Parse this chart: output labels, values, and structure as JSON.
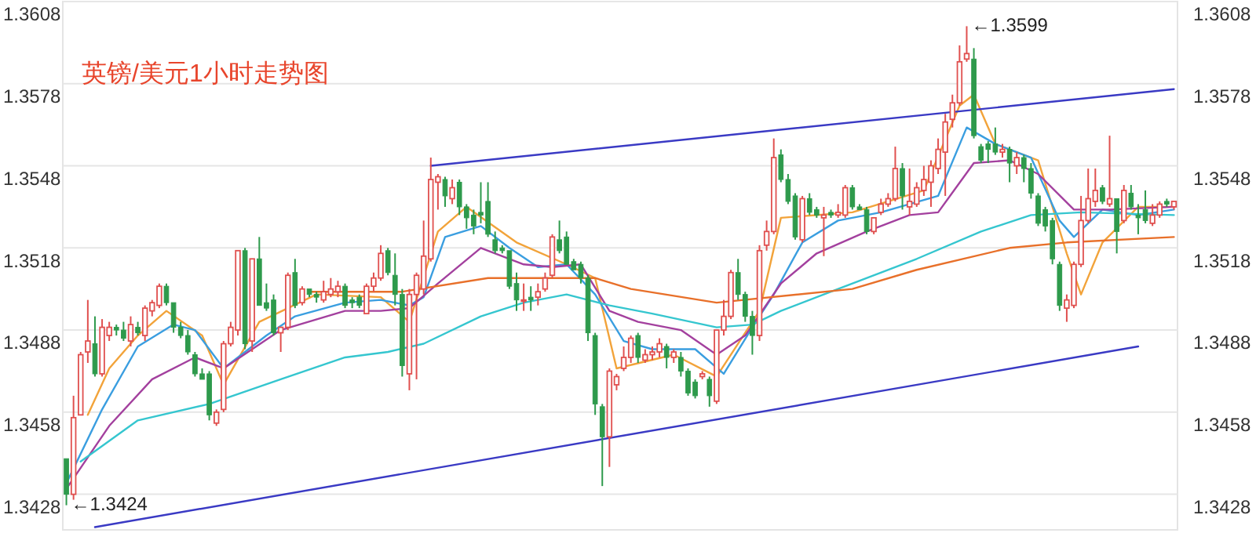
{
  "chart_data": {
    "type": "candlestick",
    "title": "英镑/美元1小时走势图",
    "categories": [
      null,
      null,
      null,
      null,
      null,
      null,
      null,
      null,
      null,
      null,
      null,
      null,
      null,
      null,
      null,
      null,
      null,
      null,
      null,
      null,
      null,
      null,
      null,
      null,
      null,
      null,
      null,
      null,
      null,
      null,
      null,
      null,
      null,
      null,
      null,
      null,
      null,
      null,
      null,
      null,
      null,
      null,
      null,
      null,
      null,
      null,
      null,
      null,
      null,
      null,
      null,
      null,
      null,
      null,
      null,
      null,
      null,
      null,
      null,
      null,
      null,
      null,
      null,
      null,
      null,
      null,
      null,
      null,
      null,
      null,
      null,
      null,
      null,
      null,
      null,
      null,
      null,
      null,
      null,
      null,
      null,
      null,
      null,
      null,
      null,
      null,
      null,
      null,
      null,
      null,
      null,
      null,
      null,
      null,
      null,
      null,
      null,
      null,
      null,
      null,
      null,
      null,
      null,
      null,
      null,
      null,
      null,
      null,
      null,
      null,
      null,
      null,
      null,
      null,
      null,
      null,
      null,
      null,
      null,
      null,
      null,
      null,
      null,
      null,
      null,
      null,
      null,
      null,
      null,
      null,
      null,
      null,
      null,
      null,
      null,
      null,
      null,
      null,
      null,
      null,
      null,
      null,
      null,
      null,
      null,
      null,
      null,
      null,
      null,
      null,
      null,
      null,
      null,
      null,
      null,
      null
    ],
    "ohlc": [
      [
        1.3441,
        1.3441,
        1.3424,
        1.3428
      ],
      [
        1.3428,
        1.3464,
        1.3426,
        1.3456
      ],
      [
        1.3457,
        1.348,
        1.3457,
        1.3479
      ],
      [
        1.348,
        1.3499,
        1.3476,
        1.3484
      ],
      [
        1.3483,
        1.3493,
        1.3471,
        1.3472
      ],
      [
        1.3472,
        1.3492,
        1.3471,
        1.3489
      ],
      [
        1.3486,
        1.3491,
        1.3484,
        1.3489
      ],
      [
        1.3489,
        1.349,
        1.3486,
        1.3488
      ],
      [
        1.3488,
        1.3491,
        1.3484,
        1.3485
      ],
      [
        1.3484,
        1.3493,
        1.3482,
        1.349
      ],
      [
        1.3489,
        1.3491,
        1.3486,
        1.3487
      ],
      [
        1.3486,
        1.3497,
        1.3484,
        1.3496
      ],
      [
        1.3495,
        1.3499,
        1.3493,
        1.3498
      ],
      [
        1.3497,
        1.3505,
        1.3496,
        1.3504
      ],
      [
        1.3504,
        1.3505,
        1.3497,
        1.3498
      ],
      [
        1.3498,
        1.3498,
        1.3487,
        1.3489
      ],
      [
        1.3489,
        1.3491,
        1.3485,
        1.3486
      ],
      [
        1.3486,
        1.3488,
        1.3479,
        1.348
      ],
      [
        1.3479,
        1.348,
        1.3471,
        1.3472
      ],
      [
        1.3472,
        1.3474,
        1.347,
        1.347
      ],
      [
        1.3472,
        1.3473,
        1.3455,
        1.3457
      ],
      [
        1.3454,
        1.3459,
        1.3453,
        1.3458
      ],
      [
        1.3459,
        1.3484,
        1.3458,
        1.3483
      ],
      [
        1.3483,
        1.3491,
        1.3482,
        1.3489
      ],
      [
        1.3488,
        1.3517,
        1.3486,
        1.3517
      ],
      [
        1.3517,
        1.3518,
        1.3481,
        1.3483
      ],
      [
        1.3484,
        1.3514,
        1.348,
        1.3514
      ],
      [
        1.3514,
        1.3522,
        1.3497,
        1.3497
      ],
      [
        1.3498,
        1.3505,
        1.3495,
        1.3496
      ],
      [
        1.3499,
        1.3501,
        1.3486,
        1.3487
      ],
      [
        1.3487,
        1.3489,
        1.348,
        1.3489
      ],
      [
        1.3489,
        1.3509,
        1.3488,
        1.3508
      ],
      [
        1.3509,
        1.3514,
        1.3496,
        1.3497
      ],
      [
        1.3498,
        1.3504,
        1.3497,
        1.3503
      ],
      [
        1.3503,
        1.3503,
        1.35,
        1.3501
      ],
      [
        1.3501,
        1.3502,
        1.3498,
        1.35
      ],
      [
        1.3499,
        1.3506,
        1.3498,
        1.3502
      ],
      [
        1.3501,
        1.3507,
        1.35,
        1.3503
      ],
      [
        1.3502,
        1.3506,
        1.35,
        1.3504
      ],
      [
        1.3504,
        1.3505,
        1.3496,
        1.3497
      ],
      [
        1.3499,
        1.35,
        1.3496,
        1.3498
      ],
      [
        1.35,
        1.3501,
        1.3496,
        1.3497
      ],
      [
        1.3494,
        1.3505,
        1.3494,
        1.3504
      ],
      [
        1.3504,
        1.3509,
        1.3502,
        1.3507
      ],
      [
        1.3507,
        1.3519,
        1.3506,
        1.3516
      ],
      [
        1.3517,
        1.3518,
        1.3508,
        1.3509
      ],
      [
        1.3508,
        1.3516,
        1.3497,
        1.3501
      ],
      [
        1.3501,
        1.3503,
        1.3471,
        1.3475
      ],
      [
        1.3472,
        1.3503,
        1.3466,
        1.3501
      ],
      [
        1.3501,
        1.3509,
        1.347,
        1.3508
      ],
      [
        1.3503,
        1.3528,
        1.3501,
        1.3515
      ],
      [
        1.3514,
        1.3551,
        1.3513,
        1.3543
      ],
      [
        1.3542,
        1.3545,
        1.3532,
        1.3544
      ],
      [
        1.3543,
        1.3544,
        1.3533,
        1.3537
      ],
      [
        1.3536,
        1.3543,
        1.3534,
        1.354
      ],
      [
        1.3542,
        1.3543,
        1.353,
        1.3533
      ],
      [
        1.3533,
        1.3534,
        1.3525,
        1.3529
      ],
      [
        1.353,
        1.3532,
        1.3523,
        1.3526
      ],
      [
        1.3531,
        1.3542,
        1.3527,
        1.353
      ],
      [
        1.3535,
        1.3542,
        1.3522,
        1.3523
      ],
      [
        1.3521,
        1.3524,
        1.3516,
        1.3517
      ],
      [
        1.3518,
        1.3519,
        1.3516,
        1.3517
      ],
      [
        1.3517,
        1.3517,
        1.3503,
        1.3504
      ],
      [
        1.3505,
        1.3509,
        1.3495,
        1.3499
      ],
      [
        1.3499,
        1.3505,
        1.3495,
        1.3499
      ],
      [
        1.35,
        1.3504,
        1.3495,
        1.3499
      ],
      [
        1.35,
        1.3505,
        1.3497,
        1.3502
      ],
      [
        1.3503,
        1.3509,
        1.3502,
        1.3507
      ],
      [
        1.3508,
        1.3523,
        1.3507,
        1.3522
      ],
      [
        1.3521,
        1.3528,
        1.3516,
        1.3517
      ],
      [
        1.3522,
        1.3524,
        1.3512,
        1.3512
      ],
      [
        1.3513,
        1.3514,
        1.351,
        1.351
      ],
      [
        1.3512,
        1.3513,
        1.3505,
        1.3507
      ],
      [
        1.3507,
        1.3508,
        1.3484,
        1.3487
      ],
      [
        1.3486,
        1.3487,
        1.3457,
        1.3461
      ],
      [
        1.346,
        1.3461,
        1.3431,
        1.3449
      ],
      [
        1.3449,
        1.3474,
        1.3438,
        1.3473
      ],
      [
        1.3468,
        1.3472,
        1.3466,
        1.3471
      ],
      [
        1.3474,
        1.3482,
        1.3473,
        1.3478
      ],
      [
        1.3478,
        1.3486,
        1.3476,
        1.3485
      ],
      [
        1.3486,
        1.3487,
        1.3476,
        1.3478
      ],
      [
        1.3477,
        1.3481,
        1.3476,
        1.3479
      ],
      [
        1.3479,
        1.3482,
        1.3477,
        1.348
      ],
      [
        1.348,
        1.3485,
        1.3478,
        1.3483
      ],
      [
        1.3482,
        1.3483,
        1.3474,
        1.3478
      ],
      [
        1.3478,
        1.3481,
        1.3476,
        1.348
      ],
      [
        1.3478,
        1.348,
        1.3471,
        1.3473
      ],
      [
        1.3473,
        1.3474,
        1.3464,
        1.3465
      ],
      [
        1.3469,
        1.347,
        1.3463,
        1.3464
      ],
      [
        1.3471,
        1.3473,
        1.347,
        1.3472
      ],
      [
        1.347,
        1.3471,
        1.346,
        1.3464
      ],
      [
        1.3462,
        1.3488,
        1.3461,
        1.3488
      ],
      [
        1.3488,
        1.3499,
        1.3486,
        1.3493
      ],
      [
        1.3493,
        1.351,
        1.3492,
        1.3509
      ],
      [
        1.3509,
        1.3514,
        1.3499,
        1.3501
      ],
      [
        1.3501,
        1.3502,
        1.3491,
        1.3493
      ],
      [
        1.3493,
        1.3495,
        1.3479,
        1.3486
      ],
      [
        1.3486,
        1.3519,
        1.3484,
        1.3517
      ],
      [
        1.3519,
        1.3528,
        1.3517,
        1.3524
      ],
      [
        1.3524,
        1.3558,
        1.3523,
        1.3551
      ],
      [
        1.3552,
        1.3554,
        1.3542,
        1.3543
      ],
      [
        1.3543,
        1.3545,
        1.3534,
        1.3535
      ],
      [
        1.3537,
        1.3538,
        1.3521,
        1.3522
      ],
      [
        1.3521,
        1.3537,
        1.352,
        1.3536
      ],
      [
        1.3536,
        1.3538,
        1.353,
        1.3531
      ],
      [
        1.3532,
        1.3533,
        1.3529,
        1.353
      ],
      [
        1.3529,
        1.3533,
        1.3515,
        1.353
      ],
      [
        1.3531,
        1.3532,
        1.3529,
        1.353
      ],
      [
        1.353,
        1.3534,
        1.3529,
        1.3531
      ],
      [
        1.353,
        1.3541,
        1.3529,
        1.354
      ],
      [
        1.354,
        1.3541,
        1.3532,
        1.3533
      ],
      [
        1.3533,
        1.3534,
        1.3532,
        1.3532
      ],
      [
        1.3532,
        1.3533,
        1.3523,
        1.3524
      ],
      [
        1.3524,
        1.3529,
        1.3523,
        1.3529
      ],
      [
        1.3531,
        1.3536,
        1.353,
        1.3534
      ],
      [
        1.3534,
        1.3538,
        1.3533,
        1.3536
      ],
      [
        1.3536,
        1.3555,
        1.3535,
        1.3547
      ],
      [
        1.3547,
        1.3549,
        1.3532,
        1.3537
      ],
      [
        1.3533,
        1.3547,
        1.353,
        1.3535
      ],
      [
        1.3534,
        1.3542,
        1.3533,
        1.354
      ],
      [
        1.3539,
        1.3548,
        1.3537,
        1.3543
      ],
      [
        1.3542,
        1.355,
        1.3533,
        1.3548
      ],
      [
        1.3547,
        1.3558,
        1.3545,
        1.3554
      ],
      [
        1.3553,
        1.3567,
        1.3537,
        1.3564
      ],
      [
        1.3565,
        1.3574,
        1.3562,
        1.3571
      ],
      [
        1.3571,
        1.3592,
        1.357,
        1.3586
      ],
      [
        1.3587,
        1.3599,
        1.3586,
        1.3589
      ],
      [
        1.3587,
        1.3591,
        1.3558,
        1.3559
      ],
      [
        1.3555,
        1.3556,
        1.3549,
        1.355
      ],
      [
        1.3556,
        1.3557,
        1.3549,
        1.3554
      ],
      [
        1.3556,
        1.3562,
        1.3552,
        1.3553
      ],
      [
        1.3553,
        1.3556,
        1.3551,
        1.3554
      ],
      [
        1.3554,
        1.3555,
        1.3542,
        1.3549
      ],
      [
        1.3548,
        1.3553,
        1.3545,
        1.3551
      ],
      [
        1.3551,
        1.3552,
        1.3542,
        1.3547
      ],
      [
        1.3547,
        1.3549,
        1.3536,
        1.3538
      ],
      [
        1.3537,
        1.3538,
        1.3526,
        1.3527
      ],
      [
        1.3532,
        1.3533,
        1.3524,
        1.3526
      ],
      [
        1.3528,
        1.3529,
        1.3512,
        1.3514
      ],
      [
        1.3512,
        1.3513,
        1.3495,
        1.3497
      ],
      [
        1.3496,
        1.3501,
        1.3491,
        1.3499
      ],
      [
        1.3497,
        1.3513,
        1.3496,
        1.3512
      ],
      [
        1.3512,
        1.3537,
        1.3511,
        1.3528
      ],
      [
        1.3528,
        1.3547,
        1.3527,
        1.3536
      ],
      [
        1.3535,
        1.3547,
        1.3533,
        1.3539
      ],
      [
        1.354,
        1.3541,
        1.3534,
        1.3535
      ],
      [
        1.3534,
        1.3559,
        1.3533,
        1.3536
      ],
      [
        1.3536,
        1.3536,
        1.3516,
        1.3524
      ],
      [
        1.3528,
        1.3541,
        1.3527,
        1.3539
      ],
      [
        1.3538,
        1.3541,
        1.3532,
        1.3533
      ],
      [
        1.353,
        1.3534,
        1.3523,
        1.3529
      ],
      [
        1.3532,
        1.3539,
        1.3527,
        1.3528
      ],
      [
        1.3527,
        1.3534,
        1.3526,
        1.353
      ],
      [
        1.353,
        1.3535,
        1.3529,
        1.3534
      ],
      [
        1.3535,
        1.3536,
        1.3533,
        1.3534
      ],
      [
        1.3533,
        1.3535,
        1.3532,
        1.3535
      ]
    ],
    "series": [
      {
        "type": "line",
        "color": "#f2a33a",
        "values": [
          null,
          null,
          null,
          1.3457,
          null,
          null,
          1.3474,
          null,
          null,
          null,
          1.3486,
          null,
          null,
          null,
          1.3495,
          null,
          null,
          null,
          null,
          1.3486,
          null,
          null,
          1.3468,
          null,
          null,
          null,
          null,
          1.3491,
          null,
          null,
          null,
          null,
          null,
          null,
          null,
          1.3501,
          null,
          null,
          null,
          null,
          null,
          null,
          null,
          null,
          1.35,
          null,
          null,
          null,
          1.3491,
          null,
          null,
          null,
          1.3524,
          null,
          null,
          null,
          1.3533,
          null,
          null,
          null,
          null,
          null,
          null,
          1.352,
          null,
          null,
          null,
          null,
          null,
          null,
          1.3512,
          null,
          null,
          null,
          1.3507,
          null,
          null,
          1.3474,
          null,
          null,
          null,
          null,
          null,
          null,
          null,
          1.3479,
          null,
          null,
          null,
          null,
          null,
          1.3471,
          null,
          null,
          null,
          null,
          null,
          1.3495,
          null,
          null,
          1.3529,
          null,
          null,
          null,
          null,
          null,
          null,
          null,
          null,
          null,
          1.3531,
          null,
          null,
          null,
          null,
          null,
          null,
          null,
          null,
          null,
          1.3539,
          null,
          null,
          null,
          null,
          1.357,
          null,
          1.3574,
          null,
          null,
          1.3556,
          null,
          null,
          null,
          null,
          null,
          1.355,
          null,
          null,
          null,
          1.3516,
          null,
          1.3501,
          null,
          null,
          1.352,
          null,
          null,
          null,
          null,
          1.3533,
          null,
          null,
          null,
          null,
          1.3533
        ]
      },
      {
        "type": "line",
        "color": "#3a9ee0",
        "values": [
          1.3432,
          null,
          null,
          null,
          null,
          1.3459,
          null,
          null,
          null,
          null,
          1.3482,
          null,
          null,
          null,
          null,
          1.349,
          null,
          null,
          1.3488,
          null,
          null,
          null,
          1.3474,
          null,
          null,
          null,
          null,
          null,
          1.3486,
          null,
          null,
          null,
          1.3493,
          null,
          null,
          null,
          null,
          null,
          null,
          1.3498,
          null,
          null,
          null,
          null,
          1.3499,
          null,
          null,
          null,
          1.3497,
          null,
          1.35,
          null,
          null,
          1.3522,
          null,
          null,
          null,
          null,
          1.3526,
          null,
          null,
          null,
          1.3518,
          null,
          null,
          null,
          1.3511,
          null,
          null,
          null,
          1.3512,
          null,
          null,
          null,
          1.3501,
          null,
          null,
          null,
          1.3484,
          null,
          null,
          null,
          1.3481,
          null,
          null,
          null,
          null,
          null,
          1.3481,
          null,
          null,
          null,
          1.3472,
          null,
          null,
          null,
          1.3489,
          null,
          null,
          1.3501,
          null,
          null,
          null,
          1.352,
          null,
          null,
          null,
          null,
          1.3528,
          null,
          null,
          null,
          null,
          null,
          1.3531,
          null,
          null,
          null,
          1.3534,
          null,
          null,
          null,
          1.3537,
          null,
          null,
          null,
          1.3562,
          null,
          null,
          null,
          1.3556,
          null,
          null,
          null,
          null,
          1.3551,
          null,
          null,
          null,
          1.3528,
          null,
          1.3522,
          null,
          null,
          null,
          1.3532,
          null,
          null,
          null,
          null,
          1.353,
          null,
          null,
          null,
          null,
          1.3532
        ]
      },
      {
        "type": "line",
        "color": "#a3409e",
        "values": [
          1.343,
          null,
          null,
          null,
          null,
          null,
          1.3453,
          null,
          null,
          null,
          null,
          null,
          1.347,
          null,
          null,
          null,
          null,
          null,
          1.3478,
          null,
          null,
          null,
          1.3474,
          null,
          null,
          null,
          null,
          null,
          null,
          null,
          1.3488,
          null,
          null,
          null,
          null,
          null,
          null,
          null,
          null,
          1.3495,
          null,
          null,
          null,
          null,
          1.3495,
          null,
          null,
          null,
          1.3496,
          null,
          null,
          null,
          1.3505,
          null,
          null,
          null,
          null,
          null,
          1.3518,
          null,
          null,
          null,
          null,
          null,
          1.3512,
          null,
          null,
          null,
          1.3511,
          null,
          null,
          null,
          1.3512,
          null,
          null,
          null,
          1.3495,
          null,
          null,
          null,
          1.3491,
          null,
          null,
          null,
          null,
          null,
          1.3488,
          null,
          null,
          null,
          null,
          1.3479,
          null,
          null,
          null,
          1.3486,
          null,
          null,
          null,
          null,
          1.3505,
          null,
          null,
          null,
          null,
          1.3516,
          null,
          null,
          null,
          null,
          null,
          null,
          1.3524,
          null,
          null,
          null,
          null,
          null,
          1.353,
          null,
          null,
          null,
          1.3531,
          null,
          null,
          null,
          null,
          1.3549,
          null,
          null,
          null,
          null,
          1.355,
          null,
          null,
          null,
          1.3545,
          null,
          null,
          null,
          null,
          1.3532,
          null,
          null,
          null,
          null,
          1.3532,
          null,
          null,
          null,
          null,
          null,
          null,
          null,
          null,
          1.3533
        ]
      },
      {
        "type": "line",
        "color": "#35c6cf",
        "values": [
          null,
          null,
          1.344,
          null,
          null,
          null,
          null,
          null,
          null,
          null,
          1.3455,
          null,
          null,
          null,
          null,
          null,
          null,
          null,
          null,
          null,
          1.3461,
          null,
          null,
          null,
          null,
          null,
          null,
          null,
          null,
          null,
          1.347,
          null,
          null,
          null,
          null,
          null,
          null,
          null,
          null,
          1.3478,
          null,
          null,
          null,
          null,
          null,
          1.348,
          null,
          null,
          null,
          null,
          1.3483,
          null,
          null,
          null,
          null,
          null,
          null,
          null,
          1.3493,
          null,
          null,
          null,
          null,
          null,
          1.3498,
          null,
          null,
          null,
          null,
          null,
          1.3501,
          null,
          null,
          null,
          null,
          null,
          1.3497,
          null,
          null,
          null,
          null,
          null,
          1.3494,
          null,
          null,
          null,
          null,
          null,
          null,
          null,
          null,
          1.3489,
          null,
          null,
          null,
          null,
          1.349,
          null,
          null,
          null,
          1.3495,
          null,
          null,
          null,
          null,
          null,
          null,
          1.3502,
          null,
          null,
          null,
          null,
          null,
          null,
          null,
          null,
          null,
          null,
          null,
          1.3514,
          null,
          null,
          null,
          null,
          null,
          null,
          null,
          null,
          1.3524,
          null,
          null,
          null,
          null,
          null,
          null,
          1.353,
          null,
          null,
          null,
          null,
          null,
          null,
          1.3531,
          null,
          null,
          null,
          null,
          null,
          null,
          null,
          null,
          null,
          null,
          null,
          null,
          1.353
        ]
      },
      {
        "type": "line",
        "color": "#e8702a",
        "values": [
          null,
          null,
          null,
          null,
          null,
          null,
          null,
          null,
          null,
          null,
          null,
          null,
          null,
          null,
          null,
          null,
          null,
          null,
          null,
          null,
          null,
          null,
          null,
          null,
          null,
          null,
          null,
          null,
          null,
          null,
          null,
          null,
          null,
          null,
          1.3502,
          null,
          null,
          null,
          null,
          null,
          null,
          null,
          null,
          null,
          null,
          null,
          null,
          1.3502,
          null,
          null,
          null,
          null,
          null,
          null,
          null,
          null,
          null,
          null,
          null,
          1.3507,
          null,
          null,
          null,
          null,
          null,
          null,
          null,
          null,
          null,
          null,
          null,
          null,
          null,
          null,
          1.3507,
          null,
          null,
          null,
          null,
          1.3503,
          null,
          null,
          null,
          null,
          null,
          null,
          null,
          null,
          null,
          null,
          null,
          1.3498,
          null,
          null,
          null,
          null,
          null,
          null,
          null,
          null,
          null,
          null,
          null,
          null,
          null,
          null,
          null,
          null,
          null,
          null,
          1.3503,
          null,
          null,
          null,
          null,
          null,
          null,
          null,
          null,
          1.351,
          null,
          null,
          null,
          null,
          null,
          null,
          null,
          null,
          null,
          null,
          null,
          null,
          1.3518,
          null,
          null,
          null,
          null,
          null,
          null,
          null,
          1.352,
          null,
          null,
          null,
          null,
          null,
          null,
          null,
          null,
          null,
          null,
          null,
          null,
          null,
          null,
          1.3522
        ]
      },
      {
        "type": "line",
        "color": "#3a3ac4",
        "values": [
          null,
          null,
          null,
          null,
          null,
          null,
          null,
          null,
          null,
          null,
          null,
          null,
          null,
          null,
          null,
          null,
          null,
          null,
          null,
          null,
          null,
          null,
          null,
          null,
          null,
          null,
          null,
          null,
          null,
          null,
          null,
          null,
          null,
          null,
          null,
          null,
          null,
          null,
          null,
          null,
          null,
          null,
          null,
          null,
          null,
          null,
          null,
          null,
          null,
          null,
          null,
          1.3548,
          null,
          null,
          null,
          null,
          null,
          null,
          null,
          null,
          null,
          null,
          null,
          null,
          null,
          null,
          null,
          null,
          null,
          null,
          null,
          null,
          null,
          null,
          null,
          null,
          null,
          null,
          null,
          null,
          null,
          null,
          null,
          null,
          null,
          null,
          null,
          null,
          null,
          null,
          null,
          null,
          null,
          null,
          null,
          null,
          null,
          null,
          null,
          null,
          null,
          null,
          null,
          null,
          null,
          null,
          null,
          null,
          null,
          null,
          null,
          null,
          null,
          null,
          null,
          null,
          null,
          null,
          null,
          null,
          null,
          null,
          null,
          null,
          null,
          null,
          null,
          null,
          null,
          null,
          null,
          null,
          null,
          null,
          null,
          null,
          null,
          null,
          null,
          null,
          null,
          null,
          null,
          null,
          null,
          null,
          null,
          null,
          null,
          null,
          null,
          null,
          null,
          null,
          null,
          1.3576
        ]
      },
      {
        "type": "line",
        "color": "#3a3ac4",
        "values": [
          null,
          null,
          null,
          null,
          1.3416,
          null,
          null,
          null,
          null,
          null,
          null,
          null,
          null,
          null,
          null,
          null,
          null,
          null,
          null,
          null,
          null,
          null,
          null,
          null,
          null,
          null,
          null,
          null,
          null,
          null,
          null,
          null,
          null,
          null,
          null,
          null,
          null,
          null,
          null,
          null,
          null,
          null,
          null,
          null,
          null,
          null,
          null,
          null,
          null,
          null,
          null,
          null,
          null,
          null,
          null,
          null,
          null,
          null,
          null,
          null,
          null,
          null,
          null,
          null,
          null,
          null,
          null,
          null,
          null,
          null,
          null,
          null,
          null,
          null,
          null,
          null,
          null,
          null,
          null,
          null,
          null,
          null,
          null,
          null,
          null,
          null,
          null,
          null,
          null,
          null,
          null,
          null,
          null,
          null,
          null,
          null,
          null,
          null,
          null,
          null,
          null,
          null,
          null,
          null,
          null,
          null,
          null,
          null,
          null,
          null,
          null,
          null,
          null,
          null,
          null,
          null,
          null,
          null,
          null,
          null,
          null,
          null,
          null,
          null,
          null,
          null,
          null,
          null,
          null,
          null,
          null,
          null,
          null,
          null,
          null,
          null,
          null,
          null,
          null,
          null,
          null,
          null,
          null,
          null,
          null,
          null,
          null,
          null,
          null,
          null,
          1.3482,
          null,
          null,
          null,
          null,
          null
        ]
      }
    ],
    "ylim": [
      1.3415,
      1.3608
    ],
    "yticks": [
      1.3428,
      1.3458,
      1.3488,
      1.3518,
      1.3548,
      1.3578,
      1.3608
    ],
    "y2lim": [
      1.3415,
      1.3608
    ],
    "y2ticks": [
      1.3428,
      1.3458,
      1.3488,
      1.3518,
      1.3548,
      1.3578,
      1.3608
    ],
    "grid": "y",
    "annotations": [
      "←1.3599",
      "←1.3424"
    ]
  }
}
